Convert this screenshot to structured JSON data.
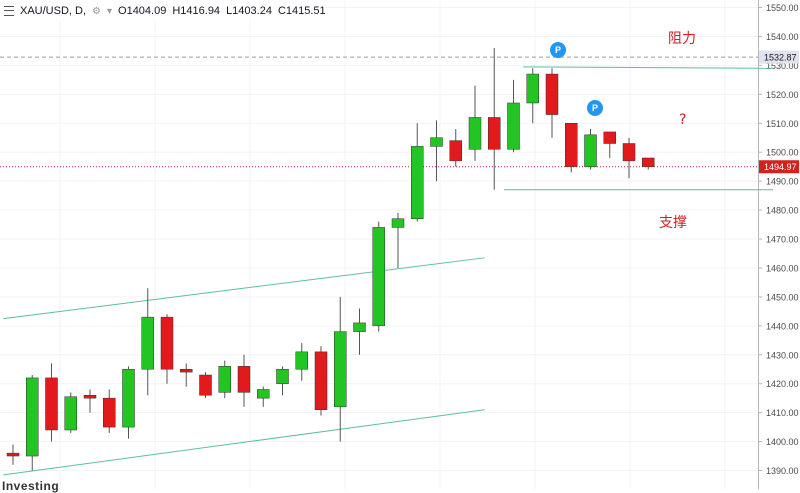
{
  "header": {
    "symbol": "XAU/USD, D,",
    "open": "O1404.09",
    "high": "H1416.94",
    "low": "L1403.24",
    "close": "C1415.51"
  },
  "annotations": {
    "resistance": "阻力",
    "support": "支撑",
    "question": "?"
  },
  "markers": {
    "p_label": "P"
  },
  "price_tags": {
    "resistance_level": "1532.87",
    "current_price": "1494.97"
  },
  "watermark": "Investing",
  "colors": {
    "up": "#22c522",
    "down": "#e31a1c",
    "trendline": "#5bbf9e",
    "current_line": "#d0221e",
    "marker": "#2196f3"
  },
  "chart_data": {
    "type": "candlestick",
    "y_axis": {
      "ticks": [
        1390,
        1400,
        1410,
        1420,
        1430,
        1440,
        1450,
        1460,
        1470,
        1480,
        1490,
        1500,
        1510,
        1520,
        1530,
        1540,
        1550
      ],
      "tick_labels": [
        "1390.00",
        "1400.00",
        "1410.00",
        "1420.00",
        "1430.00",
        "1440.00",
        "1450.00",
        "1460.00",
        "1470.00",
        "1480.00",
        "1490.00",
        "1500.00",
        "1510.00",
        "1520.00",
        "1530.00",
        "1540.00",
        "1550.00"
      ],
      "range": [
        1386.5,
        1553
      ]
    },
    "candles": [
      {
        "o": 1396,
        "h": 1399,
        "l": 1392,
        "c": 1395
      },
      {
        "o": 1395,
        "h": 1423,
        "l": 1390,
        "c": 1422
      },
      {
        "o": 1422,
        "h": 1427,
        "l": 1400,
        "c": 1404
      },
      {
        "o": 1404,
        "h": 1417,
        "l": 1403,
        "c": 1415.5
      },
      {
        "o": 1416,
        "h": 1418,
        "l": 1410,
        "c": 1415
      },
      {
        "o": 1415,
        "h": 1418,
        "l": 1403,
        "c": 1405
      },
      {
        "o": 1405,
        "h": 1426,
        "l": 1401,
        "c": 1425
      },
      {
        "o": 1425,
        "h": 1453,
        "l": 1416,
        "c": 1443
      },
      {
        "o": 1443,
        "h": 1444,
        "l": 1420,
        "c": 1425
      },
      {
        "o": 1425,
        "h": 1427,
        "l": 1419,
        "c": 1424
      },
      {
        "o": 1423,
        "h": 1424,
        "l": 1415,
        "c": 1416
      },
      {
        "o": 1417,
        "h": 1428,
        "l": 1415,
        "c": 1426
      },
      {
        "o": 1426,
        "h": 1430,
        "l": 1412,
        "c": 1417
      },
      {
        "o": 1415,
        "h": 1419,
        "l": 1412,
        "c": 1418
      },
      {
        "o": 1420,
        "h": 1426,
        "l": 1416,
        "c": 1425
      },
      {
        "o": 1425,
        "h": 1434,
        "l": 1421,
        "c": 1431
      },
      {
        "o": 1431,
        "h": 1433,
        "l": 1409,
        "c": 1411
      },
      {
        "o": 1412,
        "h": 1450,
        "l": 1400,
        "c": 1438
      },
      {
        "o": 1438,
        "h": 1446,
        "l": 1430,
        "c": 1441
      },
      {
        "o": 1440,
        "h": 1476,
        "l": 1438,
        "c": 1474
      },
      {
        "o": 1474,
        "h": 1479,
        "l": 1460,
        "c": 1477
      },
      {
        "o": 1477,
        "h": 1510,
        "l": 1476,
        "c": 1502
      },
      {
        "o": 1502,
        "h": 1511,
        "l": 1490,
        "c": 1505
      },
      {
        "o": 1504,
        "h": 1508,
        "l": 1495,
        "c": 1497
      },
      {
        "o": 1501,
        "h": 1523,
        "l": 1497,
        "c": 1512
      },
      {
        "o": 1512,
        "h": 1536,
        "l": 1487,
        "c": 1501
      },
      {
        "o": 1501,
        "h": 1525,
        "l": 1500,
        "c": 1517
      },
      {
        "o": 1517,
        "h": 1529,
        "l": 1510,
        "c": 1527
      },
      {
        "o": 1527,
        "h": 1529,
        "l": 1505,
        "c": 1513
      },
      {
        "o": 1510,
        "h": 1510,
        "l": 1493,
        "c": 1495
      },
      {
        "o": 1495,
        "h": 1508,
        "l": 1494,
        "c": 1506
      },
      {
        "o": 1507,
        "h": 1507,
        "l": 1498,
        "c": 1503
      },
      {
        "o": 1503,
        "h": 1505,
        "l": 1491,
        "c": 1497
      },
      {
        "o": 1498,
        "h": 1498,
        "l": 1494,
        "c": 1495
      }
    ],
    "trendlines": [
      {
        "from": {
          "bar": -0.5,
          "price": 1442.5
        },
        "to": {
          "bar": 24.5,
          "price": 1463.5
        }
      },
      {
        "from": {
          "bar": -0.5,
          "price": 1388.5
        },
        "to": {
          "bar": 24.5,
          "price": 1411
        }
      },
      {
        "from": {
          "bar": 26.5,
          "price": 1529.5
        },
        "to": {
          "bar": 39.5,
          "price": 1529
        }
      },
      {
        "from": {
          "bar": 25.5,
          "price": 1487
        },
        "to": {
          "bar": 39.5,
          "price": 1487
        }
      }
    ],
    "horizontal_levels": [
      {
        "price": 1532.87,
        "style": "dashed"
      },
      {
        "price": 1494.97,
        "style": "dotted"
      }
    ],
    "p_markers": [
      {
        "bar": 30,
        "price": 1539
      },
      {
        "bar": 32,
        "price": 1516
      }
    ],
    "grid": true
  }
}
